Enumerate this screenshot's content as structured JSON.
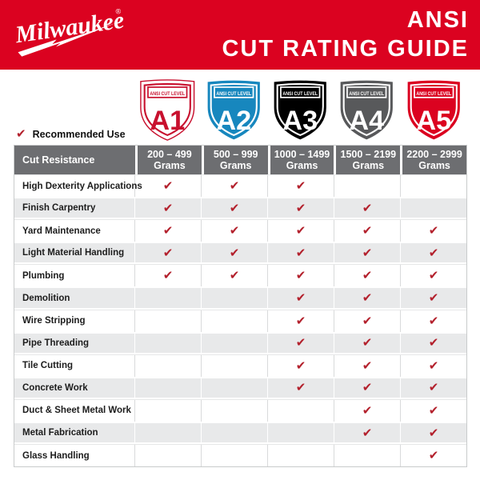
{
  "header": {
    "brand": "Milwaukee",
    "registered_mark": "®",
    "title_line1": "ANSI",
    "title_line2": "CUT RATING GUIDE",
    "background_color": "#db0220",
    "text_color": "#ffffff"
  },
  "legend": {
    "check_symbol": "✔",
    "label": "Recommended Use",
    "check_color": "#b3202c"
  },
  "badges": {
    "label": "ANSI CUT LEVEL",
    "levels": [
      {
        "code": "A1",
        "bg": "#ffffff",
        "fg": "#c8102e"
      },
      {
        "code": "A2",
        "bg": "#1787be",
        "fg": "#ffffff"
      },
      {
        "code": "A3",
        "bg": "#000000",
        "fg": "#ffffff"
      },
      {
        "code": "A4",
        "bg": "#58595b",
        "fg": "#ffffff"
      },
      {
        "code": "A5",
        "bg": "#db0220",
        "fg": "#ffffff"
      }
    ]
  },
  "table": {
    "corner_label": "Cut Resistance",
    "unit_label": "Grams",
    "column_ranges": [
      "200 – 499",
      "500 – 999",
      "1000 – 1499",
      "1500 – 2199",
      "2200 – 2999"
    ],
    "header_bg": "#6d6e71",
    "stripe_color": "#e8e9ea",
    "check_symbol": "✔",
    "rows": [
      {
        "label": "High Dexterity Applications",
        "checks": [
          true,
          true,
          true,
          false,
          false
        ]
      },
      {
        "label": "Finish Carpentry",
        "checks": [
          true,
          true,
          true,
          true,
          false
        ]
      },
      {
        "label": "Yard Maintenance",
        "checks": [
          true,
          true,
          true,
          true,
          true
        ]
      },
      {
        "label": "Light Material Handling",
        "checks": [
          true,
          true,
          true,
          true,
          true
        ]
      },
      {
        "label": "Plumbing",
        "checks": [
          true,
          true,
          true,
          true,
          true
        ]
      },
      {
        "label": "Demolition",
        "checks": [
          false,
          false,
          true,
          true,
          true
        ]
      },
      {
        "label": "Wire Stripping",
        "checks": [
          false,
          false,
          true,
          true,
          true
        ]
      },
      {
        "label": "Pipe Threading",
        "checks": [
          false,
          false,
          true,
          true,
          true
        ]
      },
      {
        "label": "Tile Cutting",
        "checks": [
          false,
          false,
          true,
          true,
          true
        ]
      },
      {
        "label": "Concrete Work",
        "checks": [
          false,
          false,
          true,
          true,
          true
        ]
      },
      {
        "label": "Duct & Sheet Metal Work",
        "checks": [
          false,
          false,
          false,
          true,
          true
        ]
      },
      {
        "label": "Metal Fabrication",
        "checks": [
          false,
          false,
          false,
          true,
          true
        ]
      },
      {
        "label": "Glass Handling",
        "checks": [
          false,
          false,
          false,
          false,
          true
        ]
      }
    ]
  }
}
